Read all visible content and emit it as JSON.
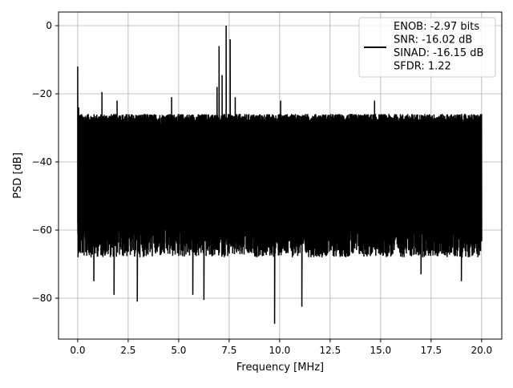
{
  "chart_data": {
    "type": "line",
    "title": "",
    "xlabel": "Frequency [MHz]",
    "ylabel": "PSD [dB]",
    "xlim": [
      -0.95,
      21.0
    ],
    "ylim": [
      -92.0,
      4.0
    ],
    "xticks": [
      0.0,
      2.5,
      5.0,
      7.5,
      10.0,
      12.5,
      15.0,
      17.5,
      20.0
    ],
    "xtick_labels": [
      "0.0",
      "2.5",
      "5.0",
      "7.5",
      "10.0",
      "12.5",
      "15.0",
      "17.5",
      "20.0"
    ],
    "yticks": [
      0,
      -20,
      -40,
      -60,
      -80
    ],
    "ytick_labels": [
      "0",
      "−20",
      "−40",
      "−60",
      "−80"
    ],
    "grid": true,
    "legend_position": "top-right",
    "line_color": "#000000",
    "series": [
      {
        "name": "ENOB: -2.97 bits\nSNR: -16.02 dB\nSINAD: -16.15 dB\nSFDR: 1.22",
        "x_range": [
          0.0,
          20.0
        ],
        "noise_floor_band": [
          -58,
          -28
        ],
        "noise_min_typical": -68,
        "peaks": [
          {
            "x": 0.0,
            "y": -12
          },
          {
            "x": 0.05,
            "y": -24
          },
          {
            "x": 1.2,
            "y": -19.5
          },
          {
            "x": 1.95,
            "y": -22
          },
          {
            "x": 4.65,
            "y": -21
          },
          {
            "x": 6.9,
            "y": -18
          },
          {
            "x": 7.0,
            "y": -6
          },
          {
            "x": 7.15,
            "y": -14.5
          },
          {
            "x": 7.35,
            "y": 0
          },
          {
            "x": 7.55,
            "y": -4
          },
          {
            "x": 7.8,
            "y": -21
          },
          {
            "x": 10.05,
            "y": -22
          },
          {
            "x": 14.7,
            "y": -22
          }
        ],
        "dips": [
          {
            "x": 0.8,
            "y": -75
          },
          {
            "x": 1.8,
            "y": -79
          },
          {
            "x": 2.95,
            "y": -81
          },
          {
            "x": 5.7,
            "y": -79
          },
          {
            "x": 6.25,
            "y": -80.5
          },
          {
            "x": 9.75,
            "y": -87.5
          },
          {
            "x": 11.1,
            "y": -82.5
          },
          {
            "x": 17.0,
            "y": -73
          },
          {
            "x": 19.0,
            "y": -75
          }
        ]
      }
    ]
  },
  "legend": {
    "line1": "ENOB: -2.97 bits",
    "line2": "SNR: -16.02 dB",
    "line3": "SINAD: -16.15 dB",
    "line4": "SFDR: 1.22"
  }
}
